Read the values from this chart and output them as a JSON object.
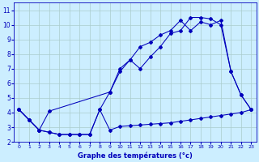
{
  "xlabel": "Graphe des températures (°c)",
  "bg_color": "#cceeff",
  "grid_color": "#aacccc",
  "line_color": "#0000bb",
  "xlim": [
    -0.5,
    23.5
  ],
  "ylim": [
    2,
    11.5
  ],
  "xticks": [
    0,
    1,
    2,
    3,
    4,
    5,
    6,
    7,
    8,
    9,
    10,
    11,
    12,
    13,
    14,
    15,
    16,
    17,
    18,
    19,
    20,
    21,
    22,
    23
  ],
  "yticks": [
    2,
    3,
    4,
    5,
    6,
    7,
    8,
    9,
    10,
    11
  ],
  "line1_x": [
    0,
    1,
    2,
    3,
    4,
    5,
    6,
    7,
    8,
    9,
    10,
    11,
    12,
    13,
    14,
    15,
    16,
    17,
    18,
    19,
    20,
    21,
    22,
    23
  ],
  "line1_y": [
    4.2,
    3.5,
    2.8,
    2.65,
    2.5,
    2.5,
    2.5,
    2.5,
    4.2,
    2.8,
    3.05,
    3.1,
    3.15,
    3.2,
    3.25,
    3.3,
    3.4,
    3.5,
    3.6,
    3.7,
    3.8,
    3.9,
    4.0,
    4.2
  ],
  "line2_x": [
    0,
    1,
    2,
    3,
    4,
    5,
    6,
    7,
    8,
    9,
    10,
    11,
    12,
    13,
    14,
    15,
    16,
    17,
    18,
    19,
    20,
    21,
    22,
    23
  ],
  "line2_y": [
    4.2,
    3.5,
    2.8,
    2.65,
    2.5,
    2.5,
    2.5,
    2.5,
    4.2,
    5.4,
    6.8,
    7.6,
    8.5,
    8.8,
    9.3,
    9.6,
    10.3,
    9.6,
    10.2,
    10.0,
    10.3,
    6.8,
    5.2,
    4.2
  ],
  "line3_x": [
    0,
    1,
    2,
    3,
    9,
    10,
    11,
    12,
    13,
    14,
    15,
    16,
    17,
    18,
    19,
    20,
    21,
    22,
    23
  ],
  "line3_y": [
    4.2,
    3.5,
    2.8,
    4.1,
    5.4,
    7.0,
    7.6,
    7.0,
    7.8,
    8.5,
    9.4,
    9.6,
    10.5,
    10.5,
    10.4,
    10.0,
    6.8,
    5.2,
    4.2
  ]
}
